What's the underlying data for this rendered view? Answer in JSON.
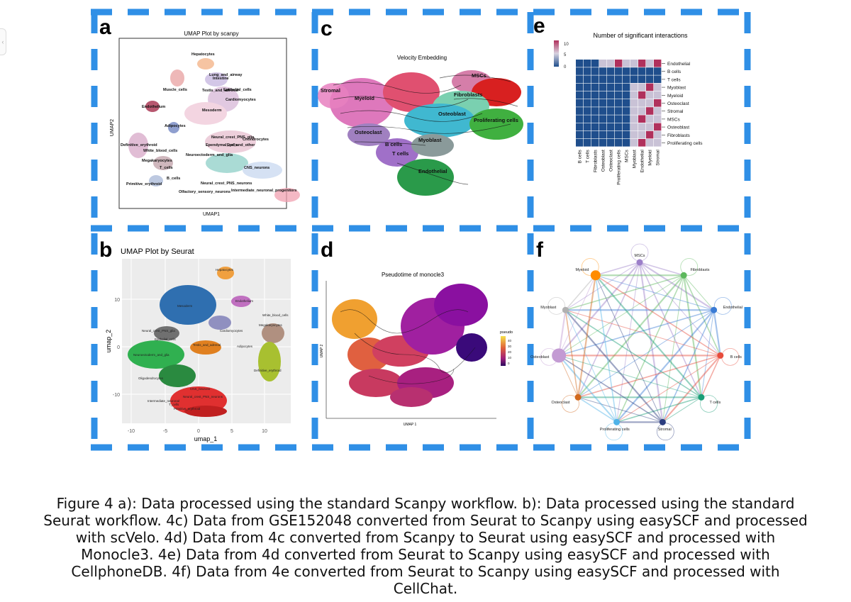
{
  "panels": {
    "a": {
      "letter": "a",
      "title": "UMAP Plot by scanpy",
      "xlabel": "UMAP1",
      "ylabel": "UMAP2",
      "cluster_labels": [
        "Hepatocytes",
        "Lung_and_airway",
        "Intestine",
        "Muscle_cells",
        "Testis_and_adrenal",
        "Epithelial_cells",
        "Cardiomyocytes",
        "Endothelium",
        "Mesoderm",
        "Adipocytes",
        "Neural_crest_PNS_glia",
        "Chondrocytes",
        "Ependymal_cells",
        "Eye_and_other",
        "Definitive_erythroid",
        "White_blood_cells",
        "Megakaryocytes",
        "Neuroectoderm_and_glia",
        "T_cells",
        "CNS_neurons",
        "B_cells",
        "Primitive_erythroid",
        "Neural_crest_PNS_neurons",
        "Olfactory_sensory_neurons",
        "Intermediate_neuronal_progenitors"
      ]
    },
    "b": {
      "letter": "b",
      "title": "UMAP Plot by Seurat",
      "xlabel": "umap_1",
      "ylabel": "umap_2",
      "xticks": [
        "-10",
        "-5",
        "0",
        "5",
        "10"
      ],
      "yticks": [
        "10",
        "0",
        "-10"
      ],
      "cluster_labels": [
        "Hepatocytes",
        "Mesoderm",
        "Endothelium",
        "White_blood_cells",
        "Neural_crest_PNS_glia",
        "Megakaryocytes",
        "Cardiomyocytes",
        "Epithelial_cells",
        "Testis_and_adrenal",
        "Adipocytes",
        "Neuroectoderm_and_glia",
        "Definitive_erythroid",
        "Oligodendrocytes",
        "CNS_neurons",
        "Neural_crest_PNS_neurons",
        "Intermediate_neuronal",
        "Primitive_erythroid",
        "T_cells"
      ]
    },
    "c": {
      "letter": "c",
      "title": "Velocity Embedding",
      "cluster_labels": [
        "Stromal",
        "Myeloid",
        "MSCs",
        "Fibroblasts",
        "Osteoblast",
        "Proliferating cells",
        "Osteoclast",
        "B cells",
        "Myoblast",
        "T cells",
        "Endothelial"
      ]
    },
    "d": {
      "letter": "d",
      "title": "Pseudotime of monocle3",
      "xlabel": "UMAP 1",
      "ylabel": "UMAP 2",
      "legend_title": "pseudo",
      "legend_ticks": [
        "40",
        "30",
        "20",
        "10",
        "0"
      ]
    },
    "e": {
      "letter": "e",
      "title": "Number of significant interactions",
      "colorbar_ticks": [
        "10",
        "5",
        "0"
      ],
      "rows": [
        "Endothelial",
        "B cells",
        "T cells",
        "Myoblast",
        "Myeloid",
        "Osteoclast",
        "Stromal",
        "MSCs",
        "Osteoblast",
        "Fibroblasts",
        "Proliferating cells"
      ],
      "cols": [
        "B cells",
        "T cells",
        "Fibroblasts",
        "Osteoblast",
        "Osteoclast",
        "Proliferating cells",
        "MSCs",
        "Myoblast",
        "Endothelial",
        "Myeloid",
        "Stromal"
      ],
      "colors": {
        "low": "#1f4e8c",
        "mid": "#c9c2d6",
        "high": "#b0305c"
      }
    },
    "f": {
      "letter": "f",
      "nodes": [
        {
          "label": "MSCs",
          "color": "#9c7fc9"
        },
        {
          "label": "Fibroblasts",
          "color": "#5cb85c"
        },
        {
          "label": "Endothelial",
          "color": "#3a7bd5"
        },
        {
          "label": "B cells",
          "color": "#e74c3c"
        },
        {
          "label": "T cells",
          "color": "#1a9e77"
        },
        {
          "label": "Stromal",
          "color": "#2c3e80"
        },
        {
          "label": "Proliferating cells",
          "color": "#4fb3e8"
        },
        {
          "label": "Osteoclast",
          "color": "#d2691e"
        },
        {
          "label": "Osteoblast",
          "color": "#c39bd3"
        },
        {
          "label": "Myoblast",
          "color": "#b0b0b0"
        },
        {
          "label": "Myeloid",
          "color": "#ff8c00"
        }
      ]
    }
  },
  "caption": {
    "lines": [
      "Figure 4 a): Data processed using the standard Scanpy workflow. b): Data processed using the standard",
      "Seurat workflow. 4c) Data from GSE152048 converted from Seurat to Scanpy using easySCF and processed",
      "with scVelo. 4d) Data from 4c converted from Scanpy to Seurat using easySCF and processed with",
      "Monocle3. 4e) Data from 4d converted from Seurat to Scanpy using easySCF and processed with",
      "CellphoneDB. 4f) Data from 4e converted from Seurat to Scanpy using easySCF and processed with",
      "CellChat."
    ]
  }
}
